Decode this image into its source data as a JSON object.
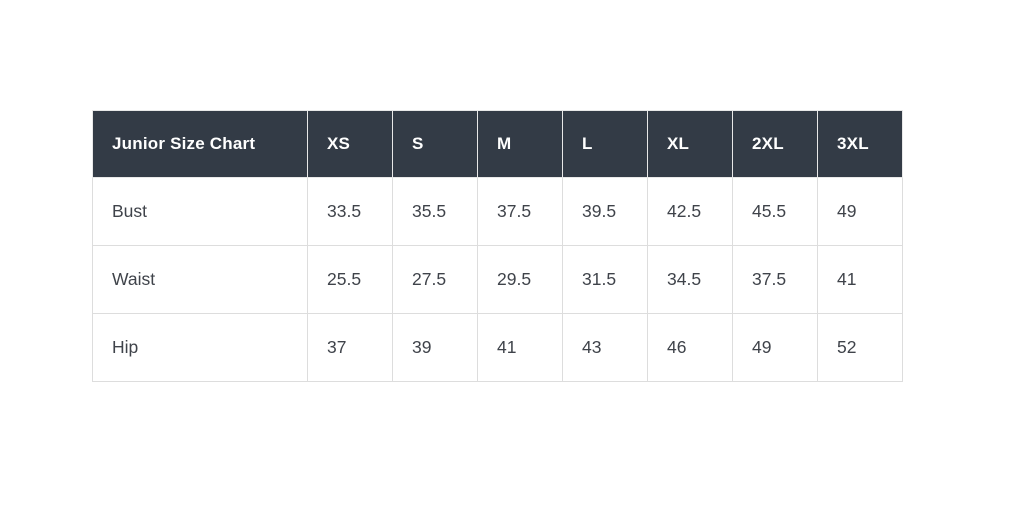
{
  "colors": {
    "header_bg": "#333b46",
    "header_text": "#ffffff",
    "body_text": "#3f434a",
    "border": "#dddddd",
    "page_bg": "#ffffff"
  },
  "chart_data": {
    "type": "table",
    "title": "Junior Size Chart",
    "columns": [
      "Junior Size Chart",
      "XS",
      "S",
      "M",
      "L",
      "XL",
      "2XL",
      "3XL"
    ],
    "rows": [
      [
        "Bust",
        33.5,
        35.5,
        37.5,
        39.5,
        42.5,
        45.5,
        49
      ],
      [
        "Waist",
        25.5,
        27.5,
        29.5,
        31.5,
        34.5,
        37.5,
        41
      ],
      [
        "Hip",
        37,
        39,
        41,
        43,
        46,
        49,
        52
      ]
    ],
    "layout": {
      "header_position": "top-row",
      "row_labels_column": "first",
      "grid": true
    }
  }
}
